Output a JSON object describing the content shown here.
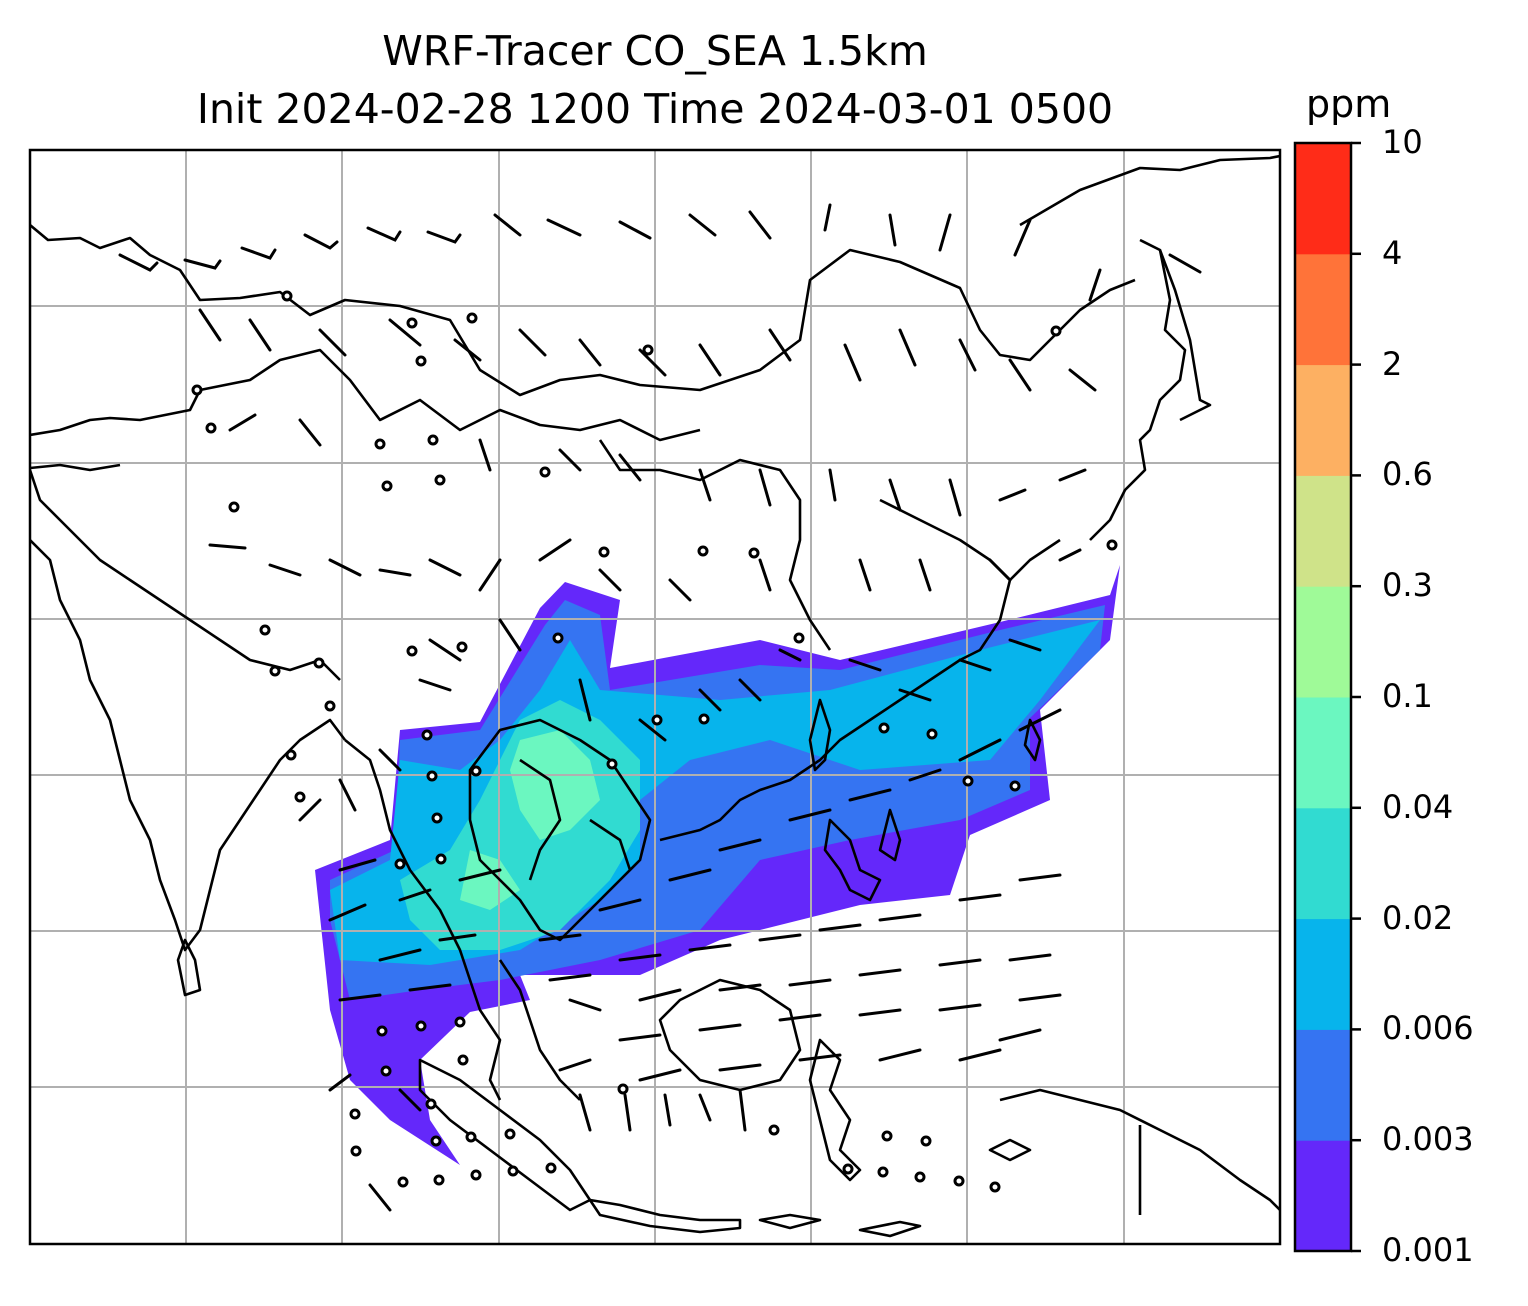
{
  "title": {
    "line1": "WRF-Tracer CO_SEA 1.5km",
    "line2": "Init 2024-02-28 1200 Time 2024-03-01 0500"
  },
  "colorbar": {
    "unit": "ppm",
    "ticks": [
      "0.001",
      "0.003",
      "0.006",
      "0.02",
      "0.04",
      "0.1",
      "0.3",
      "0.6",
      "2",
      "4",
      "10"
    ],
    "colors": [
      "#6428fa",
      "#3574f2",
      "#07b4ec",
      "#31dbd1",
      "#6bf7c0",
      "#9ffa98",
      "#cfe389",
      "#fdb062",
      "#ff7339",
      "#ff2c18"
    ]
  },
  "map": {
    "gridlines": true,
    "land_outline_color": "#000000",
    "grid_color": "#b0b0b0",
    "overlay": "wind barbs",
    "field": "CO_SEA tracer concentration"
  }
}
